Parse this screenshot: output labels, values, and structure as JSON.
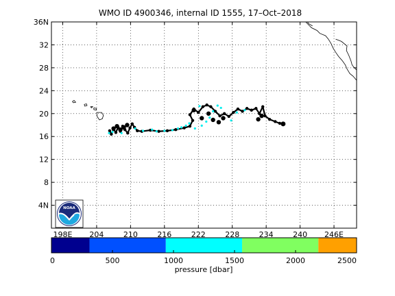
{
  "title": "WMO ID 4900346, internal ID 1555, 17–Oct–2018",
  "map": {
    "lon_range": [
      196,
      250
    ],
    "lat_range": [
      0,
      36
    ],
    "lon_ticks": [
      198,
      204,
      210,
      216,
      222,
      228,
      234,
      240,
      246
    ],
    "lon_tick_labels": [
      "198E",
      "204",
      "210",
      "216",
      "222",
      "228",
      "234",
      "240",
      "246E"
    ],
    "lat_ticks": [
      4,
      8,
      12,
      16,
      20,
      24,
      28,
      32,
      36
    ],
    "lat_tick_labels": [
      "4N",
      "8",
      "12",
      "16",
      "20",
      "24",
      "28",
      "32",
      "36N"
    ],
    "grid": true,
    "track_color": "#000000",
    "deep_color": "#00eeee",
    "track_lonlat": [
      [
        206.3,
        17.0
      ],
      [
        206.6,
        16.4
      ],
      [
        207.0,
        17.3
      ],
      [
        207.4,
        16.7
      ],
      [
        207.8,
        17.6
      ],
      [
        208.2,
        16.9
      ],
      [
        208.6,
        17.8
      ],
      [
        209.0,
        17.2
      ],
      [
        209.5,
        16.6
      ],
      [
        209.9,
        17.5
      ],
      [
        210.3,
        18.2
      ],
      [
        210.7,
        17.6
      ],
      [
        211.2,
        17.0
      ],
      [
        212.0,
        16.9
      ],
      [
        213.5,
        17.1
      ],
      [
        215.0,
        16.9
      ],
      [
        216.5,
        17.0
      ],
      [
        218.0,
        17.2
      ],
      [
        219.5,
        17.5
      ],
      [
        220.5,
        17.8
      ],
      [
        221.0,
        18.8
      ],
      [
        220.5,
        19.8
      ],
      [
        221.2,
        20.8
      ],
      [
        222.0,
        20.2
      ],
      [
        222.8,
        21.2
      ],
      [
        223.5,
        21.5
      ],
      [
        224.2,
        21.2
      ],
      [
        225.0,
        20.4
      ],
      [
        225.8,
        19.6
      ],
      [
        226.6,
        20.0
      ],
      [
        227.4,
        19.5
      ],
      [
        228.2,
        20.2
      ],
      [
        229.0,
        20.8
      ],
      [
        229.8,
        20.4
      ],
      [
        230.6,
        20.9
      ],
      [
        231.4,
        20.6
      ],
      [
        232.2,
        20.9
      ],
      [
        232.8,
        20.0
      ],
      [
        233.4,
        21.2
      ],
      [
        233.8,
        19.6
      ],
      [
        234.6,
        19.0
      ],
      [
        235.6,
        18.6
      ],
      [
        236.4,
        18.3
      ],
      [
        237.0,
        18.2
      ]
    ],
    "blob_lonlat": [
      [
        207.0,
        17.4
      ],
      [
        207.6,
        17.8
      ],
      [
        208.2,
        17.2
      ],
      [
        208.8,
        17.6
      ],
      [
        209.4,
        18.0
      ],
      [
        221.2,
        20.6
      ],
      [
        222.6,
        19.2
      ],
      [
        223.8,
        20.0
      ],
      [
        224.6,
        18.9
      ],
      [
        225.6,
        18.5
      ],
      [
        226.4,
        19.2
      ],
      [
        233.2,
        19.6
      ],
      [
        232.6,
        19.0
      ]
    ],
    "deep_points_lonlat": [
      [
        206.8,
        16.8
      ],
      [
        208.4,
        16.6
      ],
      [
        210.8,
        17.4
      ],
      [
        212.2,
        17.0
      ],
      [
        213.8,
        17.2
      ],
      [
        214.6,
        16.9
      ],
      [
        216.0,
        17.0
      ],
      [
        217.4,
        17.1
      ],
      [
        218.4,
        17.4
      ],
      [
        219.0,
        17.6
      ],
      [
        219.8,
        17.9
      ],
      [
        220.4,
        18.3
      ],
      [
        221.4,
        17.4
      ],
      [
        222.6,
        17.9
      ],
      [
        223.4,
        18.6
      ],
      [
        224.0,
        19.3
      ],
      [
        224.6,
        20.4
      ],
      [
        225.4,
        21.4
      ],
      [
        226.0,
        21.0
      ],
      [
        222.2,
        21.3
      ],
      [
        227.8,
        18.8
      ],
      [
        228.8,
        20.2
      ],
      [
        230.2,
        20.6
      ],
      [
        206.2,
        16.6
      ]
    ],
    "hawaii_lonlat": [
      [
        [
          199.7,
          22.1
        ],
        [
          200.0,
          22.3
        ],
        [
          200.3,
          22.0
        ],
        [
          199.9,
          21.9
        ],
        [
          199.7,
          22.1
        ]
      ],
      [
        [
          201.8,
          21.6
        ],
        [
          202.2,
          21.7
        ],
        [
          202.3,
          21.4
        ],
        [
          201.9,
          21.3
        ],
        [
          201.8,
          21.6
        ]
      ],
      [
        [
          202.9,
          21.2
        ],
        [
          203.3,
          21.2
        ],
        [
          203.1,
          21.0
        ],
        [
          202.9,
          21.2
        ]
      ],
      [
        [
          203.5,
          21.0
        ],
        [
          204.0,
          20.9
        ],
        [
          203.9,
          20.6
        ],
        [
          203.5,
          20.7
        ],
        [
          203.5,
          21.0
        ]
      ],
      [
        [
          204.0,
          20.2
        ],
        [
          204.9,
          20.2
        ],
        [
          205.2,
          19.7
        ],
        [
          205.0,
          19.1
        ],
        [
          204.5,
          18.9
        ],
        [
          204.1,
          19.5
        ],
        [
          204.0,
          20.2
        ]
      ]
    ],
    "coast_lonlat": [
      [
        [
          241.0,
          36.0
        ],
        [
          242.0,
          35.0
        ],
        [
          243.0,
          34.5
        ],
        [
          243.5,
          34.0
        ],
        [
          244.5,
          33.6
        ],
        [
          245.0,
          33.0
        ],
        [
          245.5,
          32.2
        ],
        [
          245.8,
          31.5
        ],
        [
          246.3,
          30.7
        ],
        [
          246.8,
          30.0
        ],
        [
          247.5,
          29.2
        ],
        [
          248.0,
          28.5
        ],
        [
          248.3,
          27.8
        ],
        [
          248.8,
          27.0
        ],
        [
          249.4,
          26.5
        ],
        [
          250.0,
          25.8
        ]
      ],
      [
        [
          246.3,
          33.0
        ],
        [
          247.3,
          32.6
        ],
        [
          248.3,
          31.8
        ],
        [
          248.2,
          31.0
        ],
        [
          248.6,
          30.2
        ],
        [
          249.0,
          29.2
        ],
        [
          249.2,
          28.5
        ],
        [
          249.6,
          28.0
        ],
        [
          250.0,
          27.6
        ]
      ],
      [
        [
          241.3,
          36.0
        ],
        [
          241.5,
          35.7
        ],
        [
          242.2,
          35.3
        ]
      ]
    ]
  },
  "colorbar": {
    "label": "pressure [dbar]",
    "ticks": [
      0,
      500,
      1000,
      1500,
      2000,
      2500
    ],
    "range": [
      0,
      2500
    ],
    "bins": [
      {
        "from": 0,
        "to": 312,
        "color": "#00008f"
      },
      {
        "from": 312,
        "to": 937,
        "color": "#0050ff"
      },
      {
        "from": 937,
        "to": 1562,
        "color": "#00ffff"
      },
      {
        "from": 1562,
        "to": 2187,
        "color": "#80ff60"
      },
      {
        "from": 2187,
        "to": 2500,
        "color": "#ffa000"
      }
    ]
  },
  "logo": {
    "text": "NOAA",
    "top_color": "#1a2b7a",
    "bottom_color": "#1fa9e0"
  }
}
